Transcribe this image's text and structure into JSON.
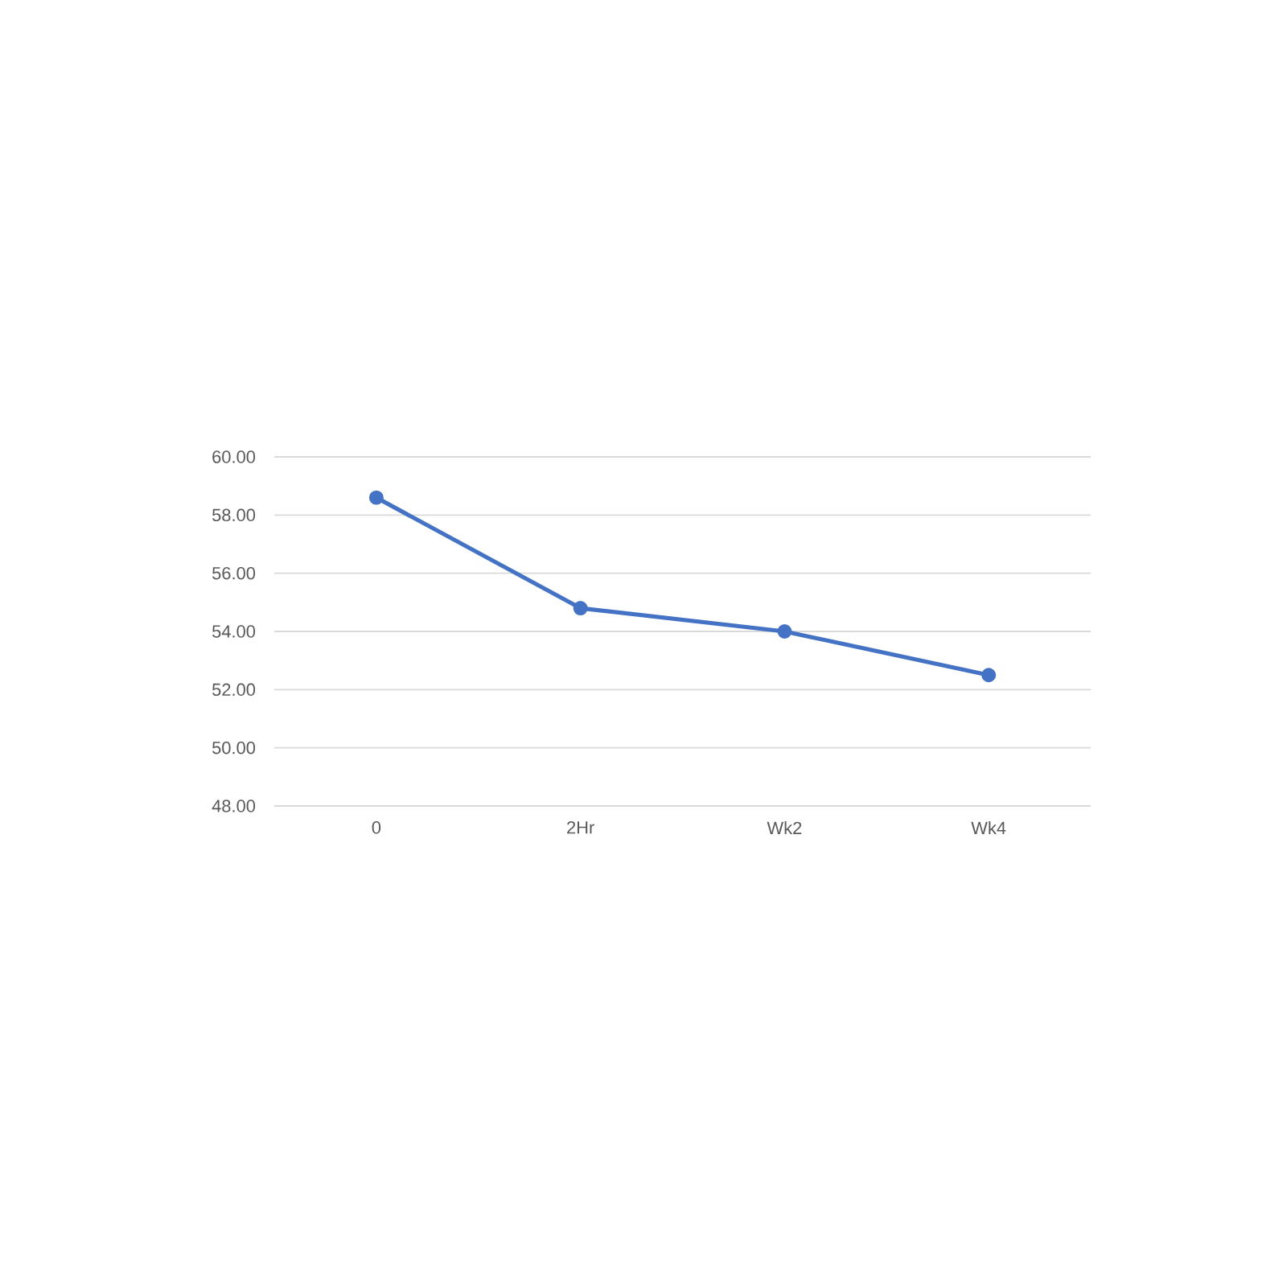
{
  "chart_data": {
    "type": "line",
    "categories": [
      "0",
      "2Hr",
      "Wk2",
      "Wk4"
    ],
    "series": [
      {
        "color": "#4472c4",
        "values": [
          58.6,
          54.8,
          54.0,
          52.5
        ]
      }
    ],
    "ylim": [
      48,
      60
    ],
    "yticks": [
      {
        "value": 48,
        "label": "48.00"
      },
      {
        "value": 50,
        "label": "50.00"
      },
      {
        "value": 52,
        "label": "52.00"
      },
      {
        "value": 54,
        "label": "54.00"
      },
      {
        "value": 56,
        "label": "56.00"
      },
      {
        "value": 58,
        "label": "58.00"
      },
      {
        "value": 60,
        "label": "60.00"
      }
    ],
    "grid": "y",
    "marker": "circle",
    "line_style": "solid"
  }
}
